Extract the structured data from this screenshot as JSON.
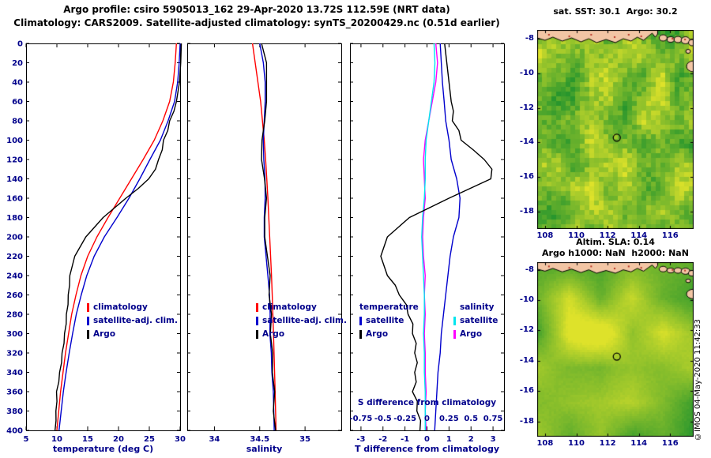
{
  "figure": {
    "title_line1": "Argo profile: csiro 5905013_162 29-Apr-2020 13.72S 112.59E (NRT data)",
    "title_line2": "Climatology: CARS2009. Satellite-adjusted climatology: synTS_20200429.nc (0.51d earlier)",
    "copyright": "©IMOS 04-May-2020 11:42:33"
  },
  "colors": {
    "climatology": "#ff0000",
    "satellite": "#0000cd",
    "argo": "#000000",
    "salinity_satellite": "#00e5ee",
    "salinity_argo": "#ff00ff",
    "axis_text": "#00008b",
    "land": "#f2c5a4",
    "sea_green": "#2e9e32",
    "sea_yellow": "#dee22e"
  },
  "chart_data": [
    {
      "type": "line",
      "panel": "temperature",
      "xlabel": "temperature (deg C)",
      "xlim": [
        5,
        30
      ],
      "xticks": [
        5,
        10,
        15,
        20,
        25,
        30
      ],
      "ylim": [
        400,
        0
      ],
      "yticks": [
        0,
        20,
        40,
        60,
        80,
        100,
        120,
        140,
        160,
        180,
        200,
        220,
        240,
        260,
        280,
        300,
        320,
        340,
        360,
        380,
        400
      ],
      "legend": [
        {
          "label": "climatology",
          "color": "#ff0000"
        },
        {
          "label": "satellite-adj. clim.",
          "color": "#0000cd"
        },
        {
          "label": "Argo",
          "color": "#000000"
        }
      ],
      "series": [
        {
          "name": "climatology",
          "color": "#ff0000",
          "depth_start": 0,
          "depth_step": 20,
          "values": [
            29.4,
            29.2,
            28.9,
            28.3,
            27.2,
            25.8,
            24.0,
            22.1,
            20.2,
            18.3,
            16.5,
            15.0,
            13.9,
            13.1,
            12.4,
            11.9,
            11.4,
            11.0,
            10.6,
            10.3,
            10.0
          ]
        },
        {
          "name": "satellite-adj. clim.",
          "color": "#0000cd",
          "depth_start": 0,
          "depth_step": 20,
          "values": [
            30.0,
            29.85,
            29.6,
            29.1,
            28.05,
            26.8,
            25.1,
            23.45,
            21.7,
            19.75,
            17.7,
            16.05,
            14.85,
            13.95,
            13.15,
            12.55,
            12.0,
            11.5,
            11.05,
            10.7,
            10.35
          ]
        },
        {
          "name": "Argo",
          "color": "#000000",
          "depth_start": 0,
          "depth_step": 10,
          "values": [
            30.2,
            30.15,
            30.1,
            30.0,
            29.9,
            29.65,
            29.4,
            29.0,
            28.3,
            28.0,
            27.3,
            27.1,
            26.5,
            26.0,
            24.9,
            23.2,
            21.2,
            19.35,
            17.5,
            16.1,
            14.7,
            13.8,
            12.9,
            12.5,
            12.1,
            12.06,
            11.84,
            11.81,
            11.54,
            11.51,
            11.24,
            11.16,
            10.84,
            10.76,
            10.44,
            10.31,
            9.94,
            10.01,
            9.84,
            9.86,
            9.7
          ]
        }
      ]
    },
    {
      "type": "line",
      "panel": "salinity",
      "xlabel": "salinity",
      "xlim": [
        33.7,
        35.4
      ],
      "xticks": [
        34,
        34.5,
        35
      ],
      "ylim": [
        400,
        0
      ],
      "legend": [
        {
          "label": "climatology",
          "color": "#ff0000"
        },
        {
          "label": "satellite-adj. clim.",
          "color": "#0000cd"
        },
        {
          "label": "Argo",
          "color": "#000000"
        }
      ],
      "series": [
        {
          "name": "climatology",
          "color": "#ff0000",
          "depth_start": 0,
          "depth_step": 20,
          "values": [
            34.42,
            34.45,
            34.48,
            34.51,
            34.53,
            34.55,
            34.565,
            34.578,
            34.59,
            34.6,
            34.61,
            34.62,
            34.63,
            34.638,
            34.645,
            34.652,
            34.658,
            34.664,
            34.67,
            34.675,
            34.68
          ]
        },
        {
          "name": "satellite-adj. clim.",
          "color": "#0000cd",
          "depth_start": 0,
          "depth_step": 20,
          "values": [
            34.5,
            34.54,
            34.56,
            34.56,
            34.55,
            34.54,
            34.545,
            34.558,
            34.56,
            34.55,
            34.55,
            34.57,
            34.59,
            34.608,
            34.615,
            34.612,
            34.628,
            34.634,
            34.65,
            34.655,
            34.66
          ]
        },
        {
          "name": "Argo",
          "color": "#000000",
          "depth_start": 0,
          "depth_step": 20,
          "values": [
            34.52,
            34.575,
            34.575,
            34.575,
            34.555,
            34.525,
            34.52,
            34.553,
            34.575,
            34.555,
            34.555,
            34.585,
            34.615,
            34.603,
            34.63,
            34.617,
            34.643,
            34.639,
            34.665,
            34.65,
            34.675
          ]
        }
      ]
    },
    {
      "type": "line",
      "panel": "difference",
      "xlabel": "T difference from climatology",
      "xlim": [
        -3.5,
        3.5
      ],
      "xticks": [
        -3,
        -2,
        -1,
        0,
        1,
        2,
        3
      ],
      "s_axis": {
        "label": "S difference from climatology",
        "ticks": [
          -0.75,
          -0.5,
          -0.25,
          0,
          0.25,
          0.5,
          0.75
        ],
        "scale": 4
      },
      "legend_columns": [
        {
          "header": "temperature",
          "items": [
            {
              "label": "satellite",
              "color": "#0000cd"
            },
            {
              "label": "Argo",
              "color": "#000000"
            }
          ]
        },
        {
          "header": "salinity",
          "items": [
            {
              "label": "satellite",
              "color": "#00e5ee"
            },
            {
              "label": "Argo",
              "color": "#ff00ff"
            }
          ]
        }
      ],
      "series": [
        {
          "name": "salinity Argo",
          "color": "#ff00ff",
          "axis": "S",
          "depth_start": 0,
          "depth_step": 20,
          "values": [
            0.1,
            0.12,
            0.1,
            0.06,
            0.02,
            -0.02,
            -0.04,
            -0.03,
            -0.02,
            -0.04,
            -0.05,
            -0.04,
            -0.02,
            -0.03,
            -0.02,
            -0.03,
            -0.02,
            -0.02,
            -0.01,
            -0.02,
            -0.01
          ]
        },
        {
          "name": "salinity satellite",
          "color": "#00e5ee",
          "axis": "S",
          "depth_start": 0,
          "depth_step": 20,
          "values": [
            0.08,
            0.09,
            0.08,
            0.05,
            0.02,
            -0.01,
            -0.02,
            -0.02,
            -0.03,
            -0.05,
            -0.06,
            -0.05,
            -0.04,
            -0.03,
            -0.03,
            -0.04,
            -0.03,
            -0.03,
            -0.02,
            -0.02,
            -0.02
          ]
        },
        {
          "name": "temperature satellite",
          "color": "#0000cd",
          "axis": "T",
          "depth_start": 0,
          "depth_step": 20,
          "values": [
            0.6,
            0.65,
            0.7,
            0.78,
            0.85,
            1.0,
            1.1,
            1.35,
            1.5,
            1.45,
            1.2,
            1.05,
            0.95,
            0.85,
            0.75,
            0.65,
            0.6,
            0.5,
            0.45,
            0.4,
            0.35
          ]
        },
        {
          "name": "temperature Argo",
          "color": "#000000",
          "axis": "T",
          "depth_start": 0,
          "depth_step": 10,
          "values": [
            0.8,
            0.85,
            0.9,
            0.95,
            1.0,
            1.05,
            1.1,
            1.2,
            1.15,
            1.45,
            1.55,
            2.1,
            2.6,
            2.95,
            2.9,
            1.95,
            1.0,
            0.1,
            -0.8,
            -1.3,
            -1.8,
            -1.95,
            -2.1,
            -1.95,
            -1.8,
            -1.44,
            -1.26,
            -0.94,
            -0.86,
            -0.64,
            -0.66,
            -0.49,
            -0.56,
            -0.44,
            -0.56,
            -0.49,
            -0.66,
            -0.44,
            -0.46,
            -0.29,
            -0.32
          ]
        }
      ]
    },
    {
      "type": "heatmap",
      "panel": "sst_map",
      "title": "sat. SST: 30.1  Argo: 30.2",
      "lon_range": [
        107.5,
        117.5
      ],
      "lat_range": [
        -7.5,
        -19
      ],
      "xticks": [
        108,
        110,
        112,
        114,
        116
      ],
      "yticks": [
        -8,
        -10,
        -12,
        -14,
        -16,
        -18
      ],
      "marker": {
        "lon": 112.59,
        "lat": -13.72
      }
    },
    {
      "type": "heatmap",
      "panel": "sla_map",
      "title": "Altim. SLA: 0.14",
      "subtitle": "Argo h1000: NaN  h2000: NaN",
      "lon_range": [
        107.5,
        117.5
      ],
      "lat_range": [
        -7.5,
        -19
      ],
      "xticks": [
        108,
        110,
        112,
        114,
        116
      ],
      "yticks": [
        -8,
        -10,
        -12,
        -14,
        -16,
        -18
      ],
      "marker": {
        "lon": 112.59,
        "lat": -13.72
      }
    }
  ]
}
